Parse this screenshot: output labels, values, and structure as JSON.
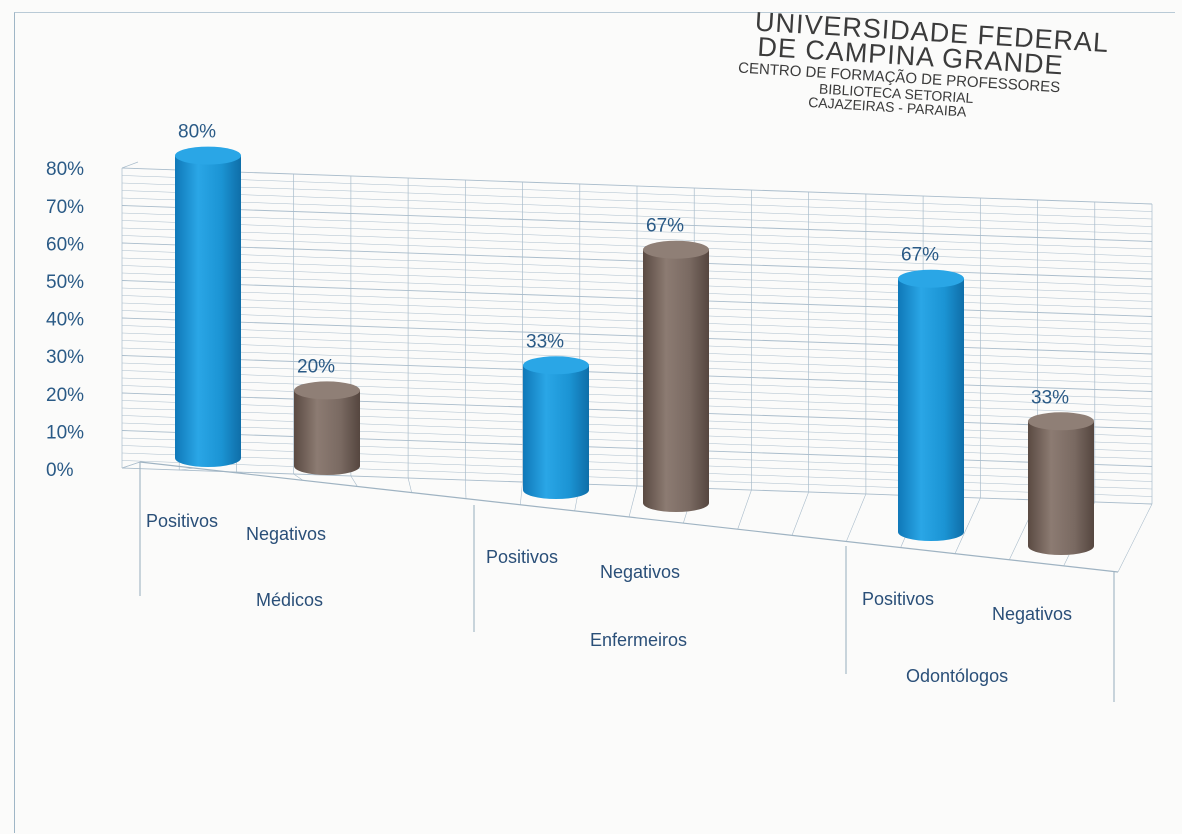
{
  "stamp": {
    "line1": "UNIVERSIDADE FEDERAL",
    "line2": "DE CAMPINA GRANDE",
    "line3": "CENTRO DE FORMAÇÃO DE PROFESSORES",
    "line4": "BIBLIOTECA SETORIAL",
    "line5": "CAJAZEIRAS - PARAIBA"
  },
  "colors": {
    "positivos": "#1c95d6",
    "negativos": "#7a6a62",
    "axis_text": "#2a5a86",
    "data_label": "#2a5a86",
    "grid": "#a9bccb"
  },
  "chart_data": {
    "type": "bar",
    "style": "3d-cylinder",
    "title": "",
    "xlabel": "",
    "ylabel": "",
    "ylim": [
      0,
      80
    ],
    "y_tick_labels": [
      "0%",
      "10%",
      "20%",
      "30%",
      "40%",
      "50%",
      "60%",
      "70%",
      "80%"
    ],
    "groups": [
      "Médicos",
      "Enfermeiros",
      "Odontólogos"
    ],
    "categories": [
      "Positivos",
      "Negativos"
    ],
    "data": [
      {
        "group": "Médicos",
        "category": "Positivos",
        "value": 80,
        "label": "80%"
      },
      {
        "group": "Médicos",
        "category": "Negativos",
        "value": 20,
        "label": "20%"
      },
      {
        "group": "Enfermeiros",
        "category": "Positivos",
        "value": 33,
        "label": "33%"
      },
      {
        "group": "Enfermeiros",
        "category": "Negativos",
        "value": 67,
        "label": "67%"
      },
      {
        "group": "Odontólogos",
        "category": "Positivos",
        "value": 67,
        "label": "67%"
      },
      {
        "group": "Odontólogos",
        "category": "Negativos",
        "value": 33,
        "label": "33%"
      }
    ],
    "grid": true,
    "legend": "none"
  }
}
